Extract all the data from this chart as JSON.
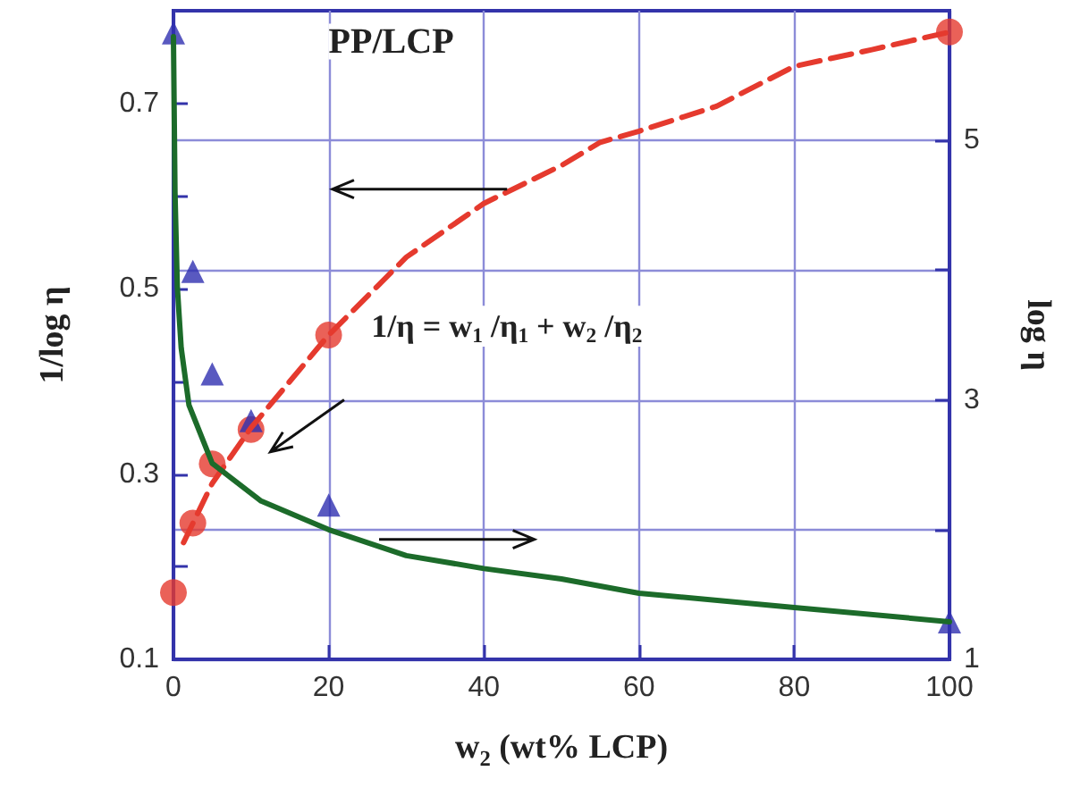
{
  "chart_data": {
    "type": "scatter",
    "xlabel": "w$_{2}$ (wt% LCP)",
    "ylabel": "1/log η",
    "y2label": "log η",
    "annotations": [
      "PP/LCP",
      "1/η = w$_{1}$ /η$_{1}$ + w$_{2}$ /η$_{2}$"
    ],
    "xlim": [
      0,
      100
    ],
    "xticks": [
      0,
      20,
      40,
      60,
      80,
      100
    ],
    "ylim": [
      0.1,
      0.8
    ],
    "yticks": [
      0.1,
      {
        "value": 0.2,
        "label": null
      },
      0.3,
      {
        "value": 0.4,
        "label": null
      },
      0.5,
      {
        "value": 0.6,
        "label": null
      },
      0.7
    ],
    "y2lim": [
      1,
      6
    ],
    "y2ticks": [
      1,
      {
        "value": 2,
        "label": null
      },
      3,
      {
        "value": 4,
        "label": null
      },
      5
    ],
    "grid": true,
    "series": [
      {
        "type": "line",
        "color": "#e53a2e",
        "line_style": "dashed",
        "marker": "none",
        "x": [
          1.3,
          5,
          10,
          20,
          30,
          40,
          50,
          55,
          60,
          70,
          80,
          90,
          100
        ],
        "values": [
          0.226,
          0.29,
          0.35,
          0.45,
          0.534,
          0.592,
          0.633,
          0.658,
          0.67,
          0.697,
          0.74,
          0.758,
          0.777
        ]
      },
      {
        "type": "line",
        "axis": "y2",
        "color": "#1c6b2a",
        "line_style": "solid",
        "marker": "none",
        "x": [
          0,
          0.2,
          0.5,
          1,
          2,
          5,
          11.3,
          20,
          30,
          40,
          50,
          60,
          80,
          100
        ],
        "values": [
          5.8,
          4.6,
          3.87,
          3.4,
          2.96,
          2.51,
          2.22,
          2.0,
          1.8,
          1.7,
          1.62,
          1.51,
          1.4,
          1.29
        ]
      },
      {
        "color": "#e53a2e",
        "marker": "circle",
        "x": [
          0,
          2.5,
          5,
          10,
          20,
          100
        ],
        "values": [
          0.172,
          0.247,
          0.311,
          0.348,
          0.45,
          0.777
        ]
      },
      {
        "axis": "y2",
        "color": "#3030b0",
        "marker": "triangle",
        "x": [
          0,
          2.5,
          5,
          10,
          20,
          100
        ],
        "values": [
          5.83,
          3.99,
          3.2,
          2.84,
          2.19,
          1.29
        ]
      }
    ]
  }
}
